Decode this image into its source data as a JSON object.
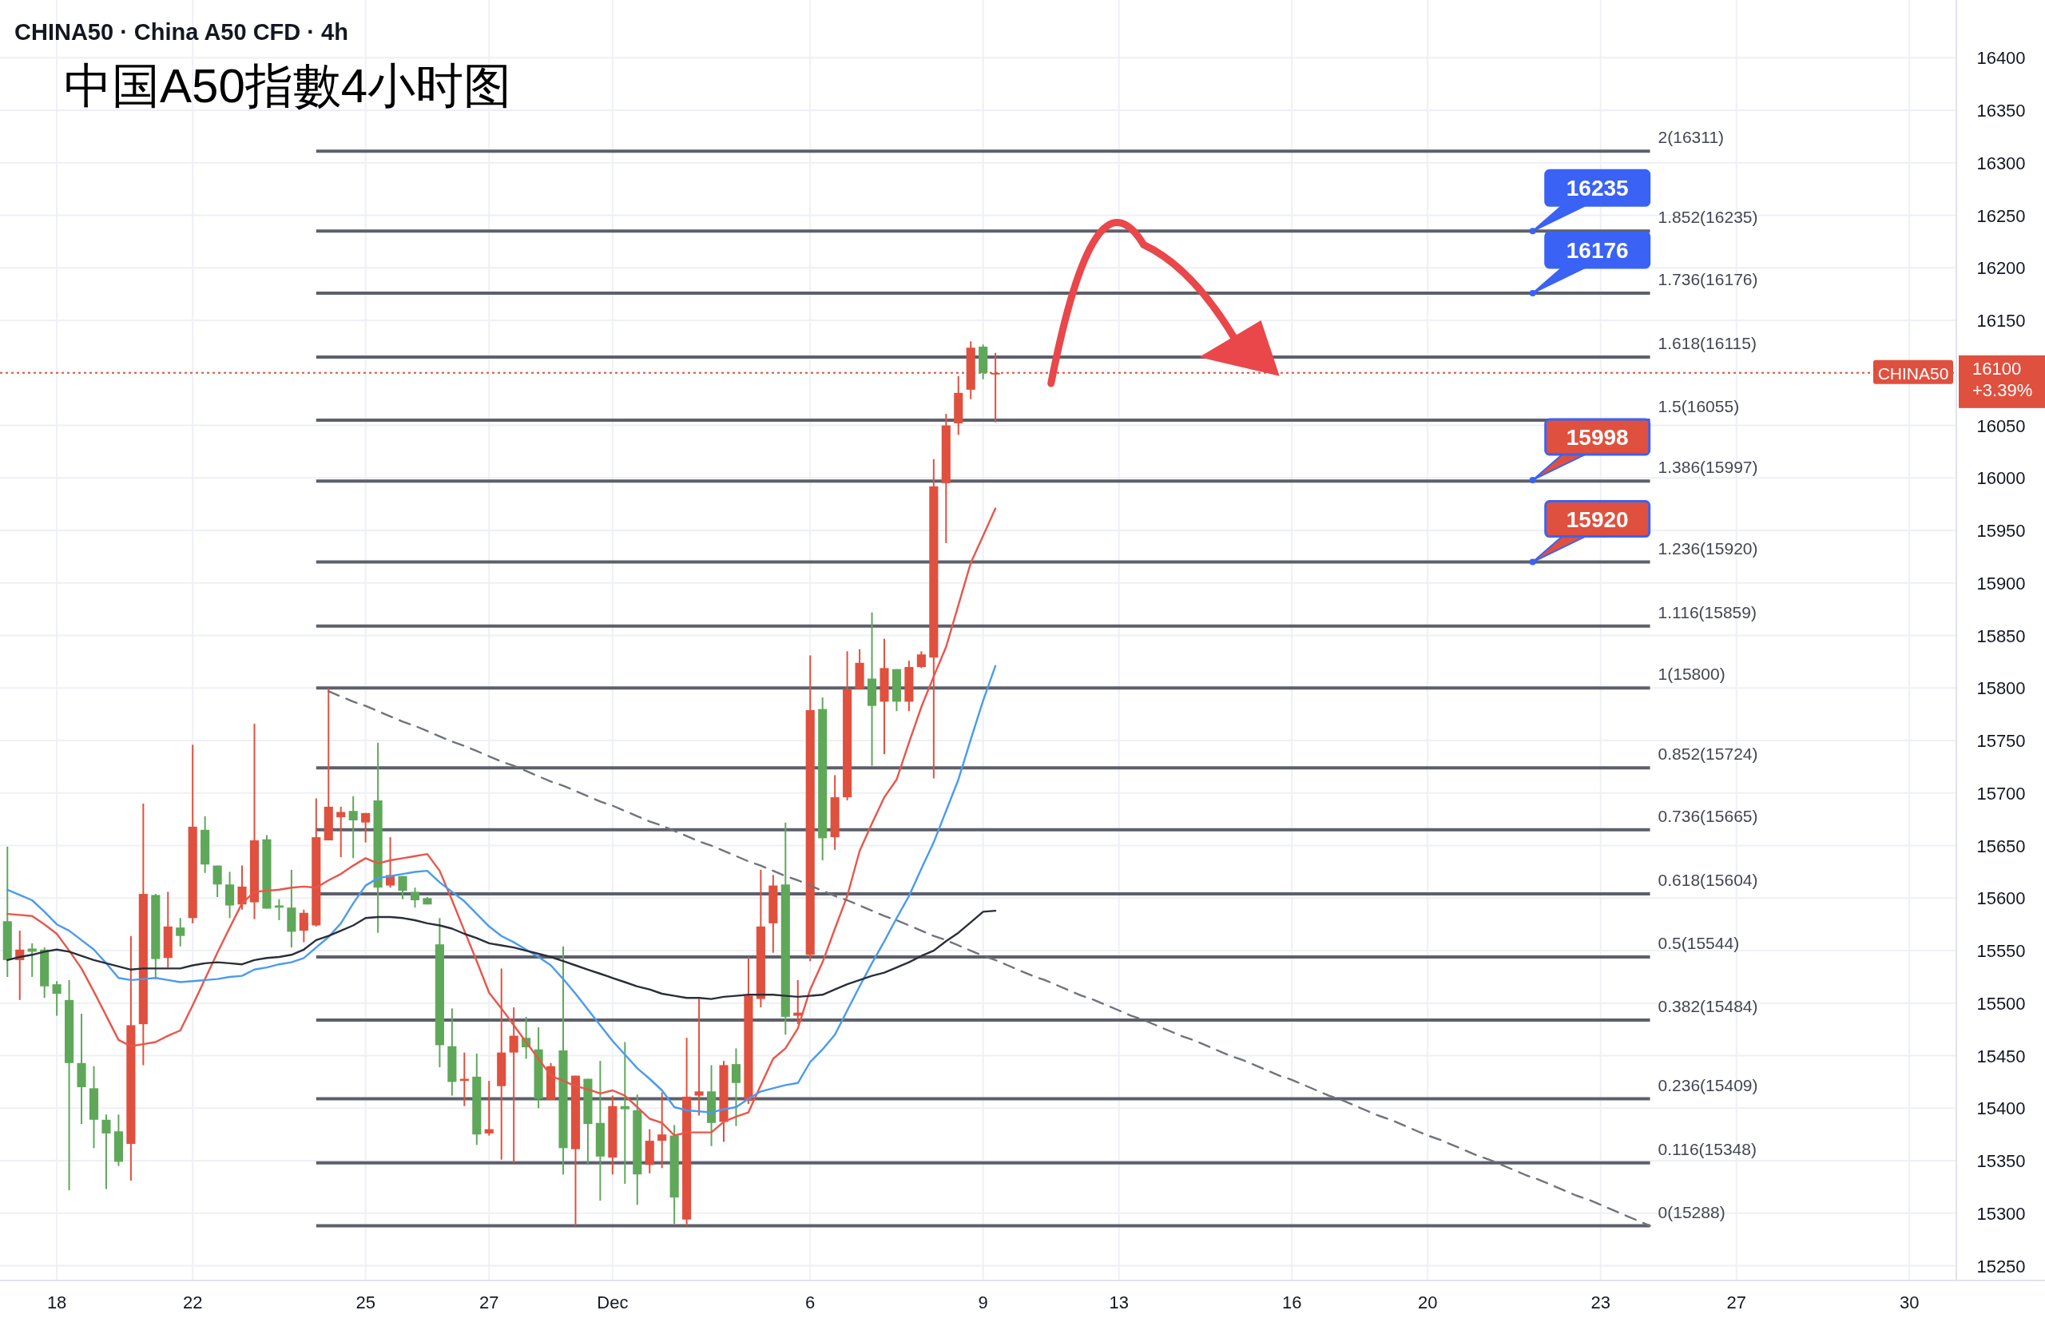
{
  "chart_data": {
    "type": "candlestick",
    "title": "中国A50指數4小时图",
    "subtitle": "CHINA50 · China A50 CFD · 4h",
    "categories": [
      null,
      null,
      null,
      null,
      "18",
      null,
      null,
      null,
      null,
      null,
      null,
      null,
      null,
      null,
      null,
      "22",
      null,
      null,
      null,
      null,
      null,
      null,
      null,
      null,
      null,
      null,
      null,
      null,
      null,
      "25",
      null,
      null,
      null,
      null,
      null,
      null,
      null,
      null,
      null,
      "27",
      null,
      null,
      null,
      null,
      null,
      null,
      null,
      null,
      null,
      "Dec",
      null,
      null,
      null,
      null,
      null,
      null,
      null,
      null,
      null,
      null,
      null,
      null,
      null,
      null,
      null,
      "6",
      null,
      null,
      null,
      null,
      null,
      null,
      null,
      null,
      null,
      null,
      null,
      null,
      null,
      "9",
      null,
      null,
      null,
      null,
      null,
      null,
      null,
      null,
      null,
      null,
      "13",
      null,
      null,
      null,
      null,
      null,
      null,
      null,
      null,
      null,
      null,
      null,
      null,
      null,
      "16",
      null,
      null,
      null,
      null,
      null,
      null,
      null,
      null,
      null,
      null,
      "20",
      null,
      null,
      null,
      null,
      null,
      null,
      null,
      null,
      null,
      null,
      null,
      null,
      null,
      "23",
      null,
      null,
      null,
      null,
      null,
      null,
      null,
      null,
      null,
      null,
      "27",
      null,
      null,
      null,
      null,
      null,
      null,
      null,
      null,
      null,
      null,
      null,
      null,
      null,
      "30",
      null,
      null,
      null
    ],
    "ohlc": [
      [
        15578,
        15649,
        15525,
        15541
      ],
      [
        15541,
        15569,
        15503,
        15551
      ],
      [
        15552,
        15557,
        15525,
        15549
      ],
      [
        15551,
        15553,
        15505,
        15516
      ],
      [
        15518,
        15521,
        15488,
        15509
      ],
      [
        15503,
        15522,
        15322,
        15443
      ],
      [
        15443,
        15490,
        15385,
        15420
      ],
      [
        15419,
        15440,
        15362,
        15389
      ],
      [
        15389,
        15394,
        15323,
        15376
      ],
      [
        15378,
        15394,
        15345,
        15349
      ],
      [
        15366,
        15564,
        15331,
        15479
      ],
      [
        15480,
        15690,
        15441,
        15604
      ],
      [
        15603,
        15604,
        15523,
        15542
      ],
      [
        15543,
        15606,
        15534,
        15573
      ],
      [
        15572,
        15581,
        15554,
        15564
      ],
      [
        15581,
        15746,
        15576,
        15668
      ],
      [
        15665,
        15678,
        15624,
        15632
      ],
      [
        15631,
        15631,
        15601,
        15613
      ],
      [
        15613,
        15625,
        15581,
        15593
      ],
      [
        15594,
        15631,
        15589,
        15611
      ],
      [
        15596,
        15766,
        15580,
        15655
      ],
      [
        15656,
        15660,
        15590,
        15590
      ],
      [
        15593,
        15599,
        15579,
        15591
      ],
      [
        15591,
        15627,
        15553,
        15568
      ],
      [
        15569,
        15589,
        15558,
        15586
      ],
      [
        15574,
        15695,
        15573,
        15658
      ],
      [
        15655,
        15800,
        15655,
        15687
      ],
      [
        15677,
        15687,
        15639,
        15682
      ],
      [
        15683,
        15697,
        15638,
        15674
      ],
      [
        15672,
        15681,
        15653,
        15681
      ],
      [
        15693,
        15748,
        15567,
        15610
      ],
      [
        15612,
        15658,
        15610,
        15622
      ],
      [
        15621,
        15621,
        15599,
        15607
      ],
      [
        15606,
        15610,
        15591,
        15598
      ],
      [
        15600,
        15601,
        15594,
        15594
      ],
      [
        15556,
        15581,
        15439,
        15460
      ],
      [
        15459,
        15495,
        15412,
        15425
      ],
      [
        15426,
        15453,
        15402,
        15428
      ],
      [
        15430,
        15452,
        15365,
        15375
      ],
      [
        15376,
        15426,
        15374,
        15380
      ],
      [
        15421,
        15533,
        15351,
        15453
      ],
      [
        15453,
        15496,
        15348,
        15469
      ],
      [
        15467,
        15487,
        15447,
        15458
      ],
      [
        15456,
        15477,
        15400,
        15409
      ],
      [
        15408,
        15443,
        15408,
        15440
      ],
      [
        15455,
        15554,
        15337,
        15362
      ],
      [
        15361,
        15431,
        15288,
        15431
      ],
      [
        15428,
        15428,
        15346,
        15385
      ],
      [
        15386,
        15445,
        15312,
        15354
      ],
      [
        15353,
        15412,
        15337,
        15402
      ],
      [
        15402,
        15463,
        15328,
        15399
      ],
      [
        15398,
        15413,
        15308,
        15337
      ],
      [
        15346,
        15380,
        15338,
        15369
      ],
      [
        15369,
        15415,
        15343,
        15375
      ],
      [
        15374,
        15384,
        15290,
        15315
      ],
      [
        15294,
        15467,
        15288,
        15411
      ],
      [
        15412,
        15504,
        15393,
        15416
      ],
      [
        15416,
        15441,
        15364,
        15386
      ],
      [
        15387,
        15445,
        15368,
        15441
      ],
      [
        15442,
        15457,
        15383,
        15424
      ],
      [
        15407,
        15544,
        15404,
        15507
      ],
      [
        15504,
        15627,
        15496,
        15573
      ],
      [
        15576,
        15622,
        15548,
        15612
      ],
      [
        15613,
        15672,
        15470,
        15487
      ],
      [
        15488,
        15522,
        15480,
        15491
      ],
      [
        15546,
        15831,
        15540,
        15779
      ],
      [
        15780,
        15791,
        15636,
        15657
      ],
      [
        15658,
        15717,
        15646,
        15696
      ],
      [
        15696,
        15835,
        15693,
        15799
      ],
      [
        15799,
        15837,
        15799,
        15824
      ],
      [
        15809,
        15872,
        15726,
        15783
      ],
      [
        15787,
        15847,
        15737,
        15819
      ],
      [
        15818,
        15818,
        15778,
        15787
      ],
      [
        15787,
        15826,
        15778,
        15820
      ],
      [
        15820,
        15835,
        15819,
        15832
      ],
      [
        15829,
        16018,
        15714,
        15992
      ],
      [
        15995,
        16061,
        15938,
        16050
      ],
      [
        16052,
        16097,
        16041,
        16081
      ],
      [
        16084,
        16130,
        16075,
        16124
      ],
      [
        16125,
        16127,
        16094,
        16100
      ],
      [
        16099,
        16119,
        16053,
        16100
      ],
      null,
      null,
      null,
      null,
      null,
      null,
      null,
      null,
      null,
      null,
      null,
      null,
      null,
      null,
      null,
      null,
      null,
      null,
      null,
      null,
      null,
      null,
      null,
      null,
      null,
      null,
      null,
      null,
      null,
      null,
      null,
      null,
      null,
      null,
      null,
      null,
      null,
      null,
      null,
      null,
      null,
      null,
      null,
      null,
      null,
      null,
      null,
      null,
      null,
      null,
      null,
      null,
      null,
      null,
      null,
      null,
      null,
      null,
      null,
      null,
      null,
      null,
      null,
      null,
      null,
      null,
      null,
      null,
      null,
      null,
      null,
      null,
      null,
      null,
      null,
      null,
      null
    ],
    "colors": [
      "#5fa85a",
      "#e0503e",
      "#5fa85a",
      "#5fa85a",
      "#5fa85a",
      "#5fa85a",
      "#5fa85a",
      "#5fa85a",
      "#5fa85a",
      "#5fa85a",
      "#e0503e",
      "#e0503e",
      "#5fa85a",
      "#e0503e",
      "#5fa85a",
      "#e0503e",
      "#5fa85a",
      "#5fa85a",
      "#5fa85a",
      "#e0503e",
      "#e0503e",
      "#5fa85a",
      "#5fa85a",
      "#5fa85a",
      "#e0503e",
      "#e0503e",
      "#e0503e",
      "#e0503e",
      "#5fa85a",
      "#e0503e",
      "#5fa85a",
      "#e0503e",
      "#5fa85a",
      "#5fa85a",
      "#5fa85a",
      "#5fa85a",
      "#5fa85a",
      "#e0503e",
      "#5fa85a",
      "#e0503e",
      "#e0503e",
      "#e0503e",
      "#5fa85a",
      "#5fa85a",
      "#e0503e",
      "#5fa85a",
      "#e0503e",
      "#5fa85a",
      "#5fa85a",
      "#e0503e",
      "#5fa85a",
      "#5fa85a",
      "#e0503e",
      "#e0503e",
      "#5fa85a",
      "#e0503e",
      "#e0503e",
      "#5fa85a",
      "#e0503e",
      "#5fa85a",
      "#e0503e",
      "#e0503e",
      "#e0503e",
      "#5fa85a",
      "#e0503e",
      "#e0503e",
      "#5fa85a",
      "#e0503e",
      "#e0503e",
      "#e0503e",
      "#5fa85a",
      "#e0503e",
      "#5fa85a",
      "#e0503e",
      "#e0503e",
      "#e0503e",
      "#e0503e",
      "#e0503e",
      "#e0503e",
      "#5fa85a",
      "#e0503e",
      null,
      null,
      null,
      null,
      null,
      null,
      null,
      null,
      null,
      null,
      null,
      null,
      null,
      null,
      null,
      null,
      null,
      null,
      null,
      null,
      null,
      null,
      null,
      null,
      null,
      null,
      null,
      null,
      null,
      null,
      null,
      null,
      null,
      null,
      null,
      null,
      null,
      null,
      null,
      null,
      null,
      null,
      null,
      null,
      null,
      null,
      null,
      null,
      null,
      null,
      null,
      null,
      null,
      null,
      null,
      null,
      null,
      null,
      null,
      null,
      null,
      null,
      null,
      null,
      null,
      null,
      null,
      null,
      null,
      null,
      null,
      null,
      null,
      null,
      null,
      null,
      null
    ],
    "series": [
      {
        "type": "line",
        "color": "#e8564a",
        "values": [
          15585,
          15584,
          15583,
          15575,
          15566,
          15550,
          15533,
          15511,
          15488,
          15465,
          15459,
          15461,
          15463,
          15469,
          15474,
          15498,
          15523,
          15548,
          15572,
          15595,
          15606,
          15607,
          15608,
          15610,
          15611,
          15610,
          15617,
          15623,
          15631,
          15638,
          15633,
          15636,
          15638,
          15640,
          15642,
          15626,
          15598,
          15569,
          15540,
          15510,
          15495,
          15479,
          15463,
          15447,
          15431,
          15426,
          15421,
          15418,
          15414,
          15417,
          15412,
          15401,
          15390,
          15386,
          15374,
          15377,
          15377,
          15377,
          15387,
          15392,
          15396,
          15422,
          15447,
          15457,
          15476,
          15513,
          15539,
          15571,
          15602,
          15645,
          15671,
          15696,
          15713,
          15748,
          15782,
          15811,
          15839,
          15879,
          15919,
          15945,
          15971,
          null,
          null,
          null,
          null,
          null,
          null,
          null,
          null,
          null,
          null,
          null,
          null,
          null,
          null,
          null,
          null,
          null,
          null,
          null,
          null,
          null,
          null,
          null,
          null,
          null,
          null,
          null,
          null,
          null,
          null,
          null,
          null,
          null,
          null,
          null,
          null,
          null,
          null,
          null,
          null,
          null,
          null,
          null,
          null,
          null,
          null,
          null,
          null,
          null,
          null,
          null,
          null,
          null,
          null,
          null,
          null,
          null,
          null,
          null,
          null,
          null,
          null,
          null,
          null,
          null,
          null,
          null,
          null,
          null,
          null,
          null,
          null,
          null,
          null,
          null,
          null,
          null
        ]
      },
      {
        "type": "line",
        "color": "#4a9af0",
        "values": [
          15608,
          15603,
          15598,
          15587,
          15575,
          15569,
          15560,
          15551,
          15538,
          15524,
          15522,
          15523,
          15524,
          15522,
          15520,
          15521,
          15522,
          15523,
          15525,
          15526,
          15532,
          15534,
          15537,
          15539,
          15543,
          15553,
          15563,
          15576,
          15595,
          15612,
          15619,
          15621,
          15623,
          15625,
          15626,
          15615,
          15606,
          15597,
          15585,
          15573,
          15564,
          15558,
          15551,
          15544,
          15536,
          15523,
          15509,
          15494,
          15479,
          15464,
          15451,
          15438,
          15428,
          15417,
          15401,
          15398,
          15397,
          15396,
          15399,
          15401,
          15409,
          15416,
          15419,
          15422,
          15424,
          15444,
          15456,
          15470,
          15493,
          15516,
          15538,
          15559,
          15581,
          15602,
          15628,
          15653,
          15683,
          15713,
          15751,
          15788,
          15821,
          null,
          null,
          null,
          null,
          null,
          null,
          null,
          null,
          null,
          null,
          null,
          null,
          null,
          null,
          null,
          null,
          null,
          null,
          null,
          null,
          null,
          null,
          null,
          null,
          null,
          null,
          null,
          null,
          null,
          null,
          null,
          null,
          null,
          null,
          null,
          null,
          null,
          null,
          null,
          null,
          null,
          null,
          null,
          null,
          null,
          null,
          null,
          null,
          null,
          null,
          null,
          null,
          null,
          null,
          null,
          null,
          null,
          null,
          null,
          null,
          null,
          null,
          null,
          null,
          null,
          null,
          null,
          null,
          null,
          null,
          null,
          null,
          null,
          null,
          null,
          null,
          null
        ]
      },
      {
        "type": "line",
        "color": "#2a2e39",
        "values": [
          15541,
          15544,
          15546,
          15549,
          15551,
          15549,
          15545,
          15541,
          15538,
          15535,
          15532,
          15533,
          15533,
          15533,
          15533,
          15536,
          15538,
          15539,
          15538,
          15537,
          15541,
          15543,
          15544,
          15546,
          15551,
          15560,
          15564,
          15569,
          15574,
          15581,
          15582,
          15582,
          15581,
          15579,
          15576,
          15574,
          15571,
          15566,
          15562,
          15557,
          15555,
          15553,
          15550,
          15547,
          15544,
          15540,
          15536,
          15532,
          15528,
          15524,
          15520,
          15516,
          15513,
          15509,
          15507,
          15505,
          15505,
          15504,
          15506,
          15507,
          15508,
          15508,
          15508,
          15507,
          15506,
          15507,
          15508,
          15513,
          15518,
          15522,
          15526,
          15529,
          15534,
          15539,
          15545,
          15550,
          15559,
          15567,
          15577,
          15587,
          15588,
          null,
          null,
          null,
          null,
          null,
          null,
          null,
          null,
          null,
          null,
          null,
          null,
          null,
          null,
          null,
          null,
          null,
          null,
          null,
          null,
          null,
          null,
          null,
          null,
          null,
          null,
          null,
          null,
          null,
          null,
          null,
          null,
          null,
          null,
          null,
          null,
          null,
          null,
          null,
          null,
          null,
          null,
          null,
          null,
          null,
          null,
          null,
          null,
          null,
          null,
          null,
          null,
          null,
          null,
          null,
          null,
          null,
          null,
          null,
          null,
          null,
          null,
          null,
          null,
          null,
          null,
          null,
          null,
          null,
          null,
          null,
          null,
          null,
          null,
          null,
          null,
          null
        ]
      },
      {
        "type": "line",
        "color": "#70737c",
        "line_style": "dashed",
        "values": [
          null,
          null,
          null,
          null,
          null,
          null,
          null,
          null,
          null,
          null,
          null,
          null,
          null,
          null,
          null,
          null,
          null,
          null,
          null,
          null,
          null,
          null,
          null,
          null,
          null,
          null,
          15797,
          15792,
          15787,
          15783,
          15778,
          15773,
          15768,
          15764,
          15759,
          15754,
          15749,
          15745,
          15740,
          15735,
          15730,
          15726,
          15721,
          15716,
          15711,
          15707,
          15702,
          15697,
          15692,
          15688,
          15683,
          15678,
          15673,
          15669,
          15664,
          15659,
          15654,
          15650,
          15645,
          15640,
          15635,
          15631,
          15626,
          15621,
          15617,
          15612,
          15607,
          15602,
          15598,
          15593,
          15588,
          15583,
          15579,
          15574,
          15569,
          15564,
          15560,
          15555,
          15550,
          15545,
          15541,
          15536,
          15531,
          15526,
          15522,
          15517,
          15512,
          15507,
          15503,
          15498,
          15493,
          15488,
          15484,
          15479,
          15474,
          15469,
          15465,
          15460,
          15455,
          15450,
          15446,
          15441,
          15436,
          15431,
          15427,
          15422,
          15417,
          15412,
          15408,
          15403,
          15398,
          15393,
          15389,
          15384,
          15379,
          15374,
          15370,
          15365,
          15360,
          15355,
          15351,
          15346,
          15341,
          15336,
          15332,
          15327,
          15322,
          15317,
          15313,
          15308,
          15303,
          15298,
          15293,
          15288,
          null,
          null,
          null,
          null,
          null,
          null,
          null,
          null,
          null,
          null,
          null,
          null,
          null,
          null,
          null,
          null,
          null,
          null,
          null,
          null,
          null,
          null,
          null,
          null
        ]
      }
    ],
    "ylim": [
      15236,
      16455
    ],
    "yticks": [
      15250,
      15300,
      15350,
      15400,
      15450,
      15500,
      15550,
      15600,
      15650,
      15700,
      15750,
      15800,
      15850,
      15900,
      15950,
      16000,
      16050,
      16150,
      16200,
      16250,
      16300,
      16350,
      16400
    ],
    "grid": true,
    "ref_lines": [
      {
        "axis": "y",
        "value": 16311,
        "label": "2(16311)"
      },
      {
        "axis": "y",
        "value": 16235,
        "label": "1.852(16235)"
      },
      {
        "axis": "y",
        "value": 16176,
        "label": "1.736(16176)"
      },
      {
        "axis": "y",
        "value": 16115,
        "label": "1.618(16115)"
      },
      {
        "axis": "y",
        "value": 16055,
        "label": "1.5(16055)"
      },
      {
        "axis": "y",
        "value": 15997,
        "label": "1.386(15997)"
      },
      {
        "axis": "y",
        "value": 15920,
        "label": "1.236(15920)"
      },
      {
        "axis": "y",
        "value": 15859,
        "label": "1.116(15859)"
      },
      {
        "axis": "y",
        "value": 15800,
        "label": "1(15800)"
      },
      {
        "axis": "y",
        "value": 15724,
        "label": "0.852(15724)"
      },
      {
        "axis": "y",
        "value": 15665,
        "label": "0.736(15665)"
      },
      {
        "axis": "y",
        "value": 15604,
        "label": "0.618(15604)"
      },
      {
        "axis": "y",
        "value": 15544,
        "label": "0.5(15544)"
      },
      {
        "axis": "y",
        "value": 15484,
        "label": "0.382(15484)"
      },
      {
        "axis": "y",
        "value": 15409,
        "label": "0.236(15409)"
      },
      {
        "axis": "y",
        "value": 15348,
        "label": "0.116(15348)"
      },
      {
        "axis": "y",
        "value": 15288,
        "label": "0(15288)"
      },
      {
        "axis": "y",
        "value": 16100,
        "label": "CHINA50",
        "color": "#e0503e",
        "line_style": "dotted"
      }
    ],
    "annotations": [
      {
        "text": "16235",
        "y": 16235
      },
      {
        "text": "16176",
        "y": 16176
      },
      {
        "text": "15998",
        "y": 15998
      },
      {
        "text": "15920",
        "y": 15920
      },
      "16100",
      "+3.39%"
    ]
  }
}
